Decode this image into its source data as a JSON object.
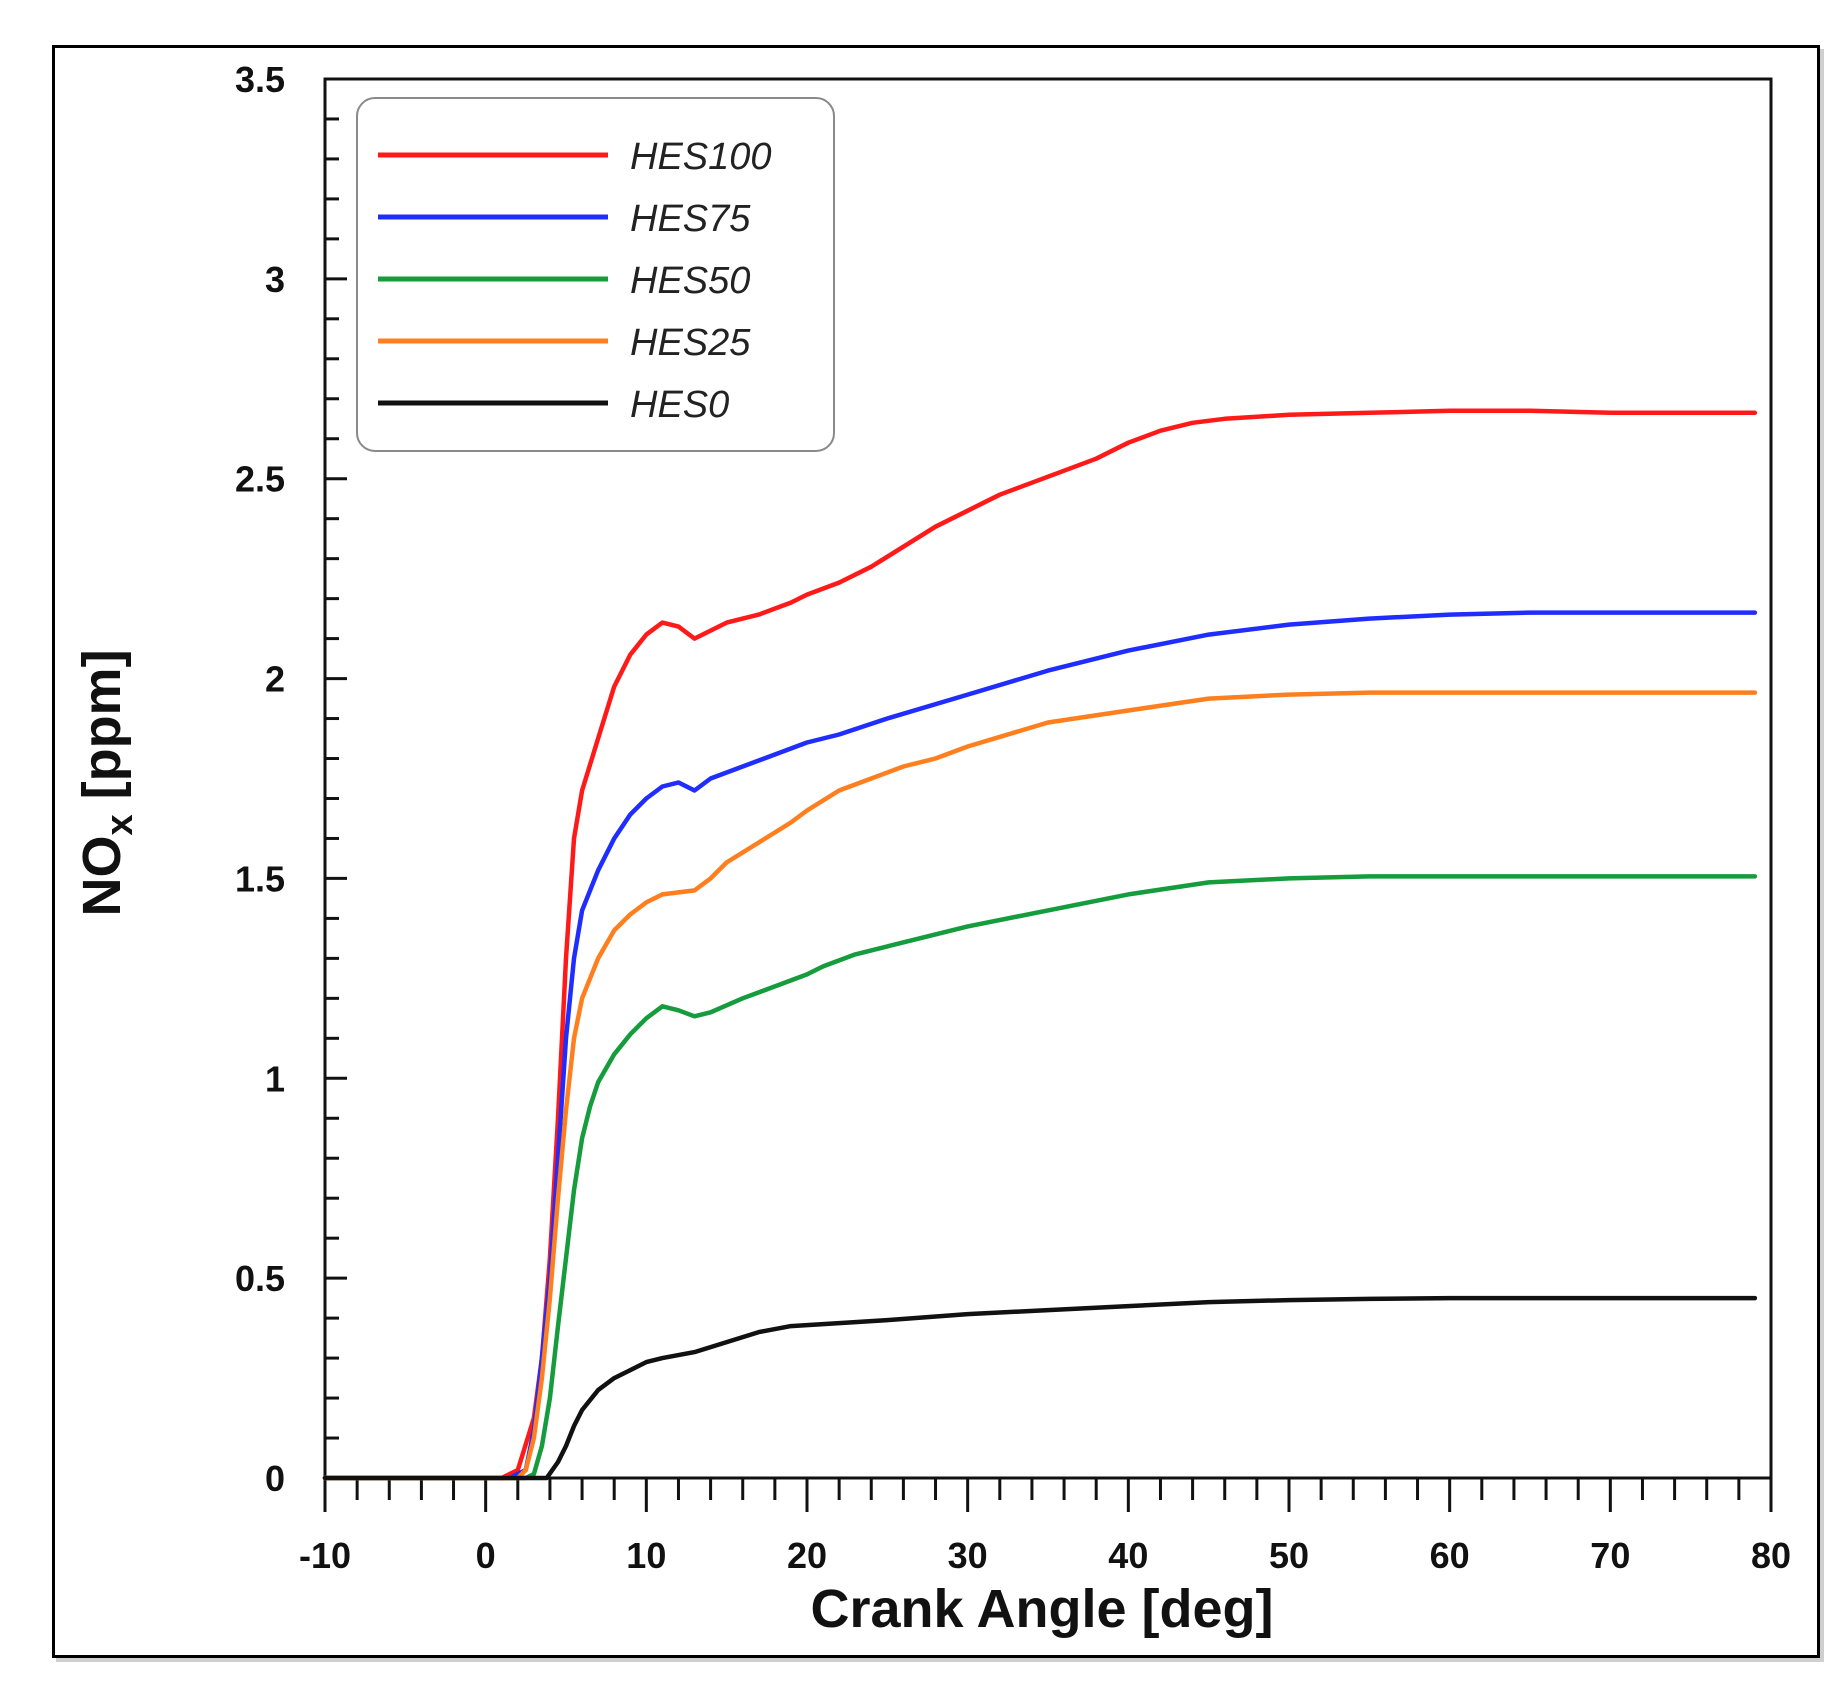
{
  "chart_data": {
    "type": "line",
    "xlabel": "Crank Angle [deg]",
    "ylabel_main": "NO",
    "ylabel_sub": "x",
    "ylabel_unit": " [ppm]",
    "xlim": [
      -10,
      80
    ],
    "ylim": [
      0,
      3.5
    ],
    "x_ticks": [
      "-10",
      "0",
      "10",
      "20",
      "30",
      "40",
      "50",
      "60",
      "70",
      "80"
    ],
    "y_ticks": [
      "0",
      "0.5",
      "1",
      "1.5",
      "2",
      "2.5",
      "3",
      "3.5"
    ],
    "grid": false,
    "legend_position": "top-left",
    "series": [
      {
        "name": "HES100",
        "color": "#ff1a1a",
        "points": [
          [
            -10,
            0
          ],
          [
            1,
            0
          ],
          [
            2,
            0.02
          ],
          [
            3,
            0.15
          ],
          [
            3.5,
            0.3
          ],
          [
            4,
            0.55
          ],
          [
            4.5,
            0.9
          ],
          [
            5,
            1.3
          ],
          [
            5.5,
            1.6
          ],
          [
            6,
            1.72
          ],
          [
            7,
            1.85
          ],
          [
            8,
            1.98
          ],
          [
            9,
            2.06
          ],
          [
            10,
            2.11
          ],
          [
            11,
            2.14
          ],
          [
            12,
            2.13
          ],
          [
            13,
            2.1
          ],
          [
            14,
            2.12
          ],
          [
            15,
            2.14
          ],
          [
            17,
            2.16
          ],
          [
            19,
            2.19
          ],
          [
            20,
            2.21
          ],
          [
            22,
            2.24
          ],
          [
            24,
            2.28
          ],
          [
            26,
            2.33
          ],
          [
            28,
            2.38
          ],
          [
            30,
            2.42
          ],
          [
            32,
            2.46
          ],
          [
            34,
            2.49
          ],
          [
            36,
            2.52
          ],
          [
            38,
            2.55
          ],
          [
            40,
            2.59
          ],
          [
            42,
            2.62
          ],
          [
            44,
            2.64
          ],
          [
            46,
            2.65
          ],
          [
            50,
            2.66
          ],
          [
            55,
            2.665
          ],
          [
            60,
            2.67
          ],
          [
            65,
            2.67
          ],
          [
            70,
            2.665
          ],
          [
            75,
            2.665
          ],
          [
            79,
            2.665
          ]
        ]
      },
      {
        "name": "HES75",
        "color": "#1f2dff",
        "points": [
          [
            -10,
            0
          ],
          [
            1.5,
            0
          ],
          [
            2.5,
            0.02
          ],
          [
            3,
            0.12
          ],
          [
            3.5,
            0.3
          ],
          [
            4,
            0.5
          ],
          [
            4.5,
            0.8
          ],
          [
            5,
            1.1
          ],
          [
            5.5,
            1.3
          ],
          [
            6,
            1.42
          ],
          [
            7,
            1.52
          ],
          [
            8,
            1.6
          ],
          [
            9,
            1.66
          ],
          [
            10,
            1.7
          ],
          [
            11,
            1.73
          ],
          [
            12,
            1.74
          ],
          [
            13,
            1.72
          ],
          [
            14,
            1.75
          ],
          [
            16,
            1.78
          ],
          [
            18,
            1.81
          ],
          [
            20,
            1.84
          ],
          [
            22,
            1.86
          ],
          [
            25,
            1.9
          ],
          [
            30,
            1.96
          ],
          [
            35,
            2.02
          ],
          [
            40,
            2.07
          ],
          [
            45,
            2.11
          ],
          [
            50,
            2.135
          ],
          [
            55,
            2.15
          ],
          [
            60,
            2.16
          ],
          [
            65,
            2.165
          ],
          [
            70,
            2.165
          ],
          [
            75,
            2.165
          ],
          [
            79,
            2.165
          ]
        ]
      },
      {
        "name": "HES50",
        "color": "#159c3c",
        "points": [
          [
            -10,
            0
          ],
          [
            2.5,
            0
          ],
          [
            3,
            0.01
          ],
          [
            3.5,
            0.08
          ],
          [
            4,
            0.2
          ],
          [
            4.5,
            0.38
          ],
          [
            5,
            0.55
          ],
          [
            5.5,
            0.72
          ],
          [
            6,
            0.85
          ],
          [
            6.5,
            0.93
          ],
          [
            7,
            0.99
          ],
          [
            8,
            1.06
          ],
          [
            9,
            1.11
          ],
          [
            10,
            1.15
          ],
          [
            11,
            1.18
          ],
          [
            12,
            1.17
          ],
          [
            13,
            1.155
          ],
          [
            14,
            1.165
          ],
          [
            16,
            1.2
          ],
          [
            18,
            1.23
          ],
          [
            20,
            1.26
          ],
          [
            21,
            1.28
          ],
          [
            23,
            1.31
          ],
          [
            25,
            1.33
          ],
          [
            30,
            1.38
          ],
          [
            35,
            1.42
          ],
          [
            40,
            1.46
          ],
          [
            45,
            1.49
          ],
          [
            50,
            1.5
          ],
          [
            55,
            1.505
          ],
          [
            60,
            1.505
          ],
          [
            65,
            1.505
          ],
          [
            70,
            1.505
          ],
          [
            75,
            1.505
          ],
          [
            79,
            1.505
          ]
        ]
      },
      {
        "name": "HES25",
        "color": "#ff7f1e",
        "points": [
          [
            -10,
            0
          ],
          [
            2,
            0
          ],
          [
            2.5,
            0.02
          ],
          [
            3,
            0.1
          ],
          [
            3.5,
            0.25
          ],
          [
            4,
            0.45
          ],
          [
            4.5,
            0.7
          ],
          [
            5,
            0.92
          ],
          [
            5.5,
            1.1
          ],
          [
            6,
            1.2
          ],
          [
            7,
            1.3
          ],
          [
            8,
            1.37
          ],
          [
            9,
            1.41
          ],
          [
            10,
            1.44
          ],
          [
            11,
            1.46
          ],
          [
            12,
            1.465
          ],
          [
            13,
            1.47
          ],
          [
            14,
            1.5
          ],
          [
            15,
            1.54
          ],
          [
            17,
            1.59
          ],
          [
            19,
            1.64
          ],
          [
            20,
            1.67
          ],
          [
            22,
            1.72
          ],
          [
            24,
            1.75
          ],
          [
            26,
            1.78
          ],
          [
            28,
            1.8
          ],
          [
            30,
            1.83
          ],
          [
            35,
            1.89
          ],
          [
            40,
            1.92
          ],
          [
            45,
            1.95
          ],
          [
            50,
            1.96
          ],
          [
            55,
            1.965
          ],
          [
            60,
            1.965
          ],
          [
            65,
            1.965
          ],
          [
            70,
            1.965
          ],
          [
            75,
            1.965
          ],
          [
            79,
            1.965
          ]
        ]
      },
      {
        "name": "HES0",
        "color": "#111111",
        "points": [
          [
            -10,
            0
          ],
          [
            3.8,
            0
          ],
          [
            4.5,
            0.04
          ],
          [
            5,
            0.08
          ],
          [
            5.5,
            0.13
          ],
          [
            6,
            0.17
          ],
          [
            7,
            0.22
          ],
          [
            8,
            0.25
          ],
          [
            9,
            0.27
          ],
          [
            10,
            0.29
          ],
          [
            11,
            0.3
          ],
          [
            13,
            0.315
          ],
          [
            15,
            0.34
          ],
          [
            17,
            0.365
          ],
          [
            19,
            0.38
          ],
          [
            21,
            0.385
          ],
          [
            25,
            0.395
          ],
          [
            30,
            0.41
          ],
          [
            35,
            0.42
          ],
          [
            40,
            0.43
          ],
          [
            45,
            0.44
          ],
          [
            50,
            0.445
          ],
          [
            55,
            0.448
          ],
          [
            60,
            0.45
          ],
          [
            65,
            0.45
          ],
          [
            70,
            0.45
          ],
          [
            75,
            0.45
          ],
          [
            79,
            0.45
          ]
        ]
      }
    ]
  }
}
